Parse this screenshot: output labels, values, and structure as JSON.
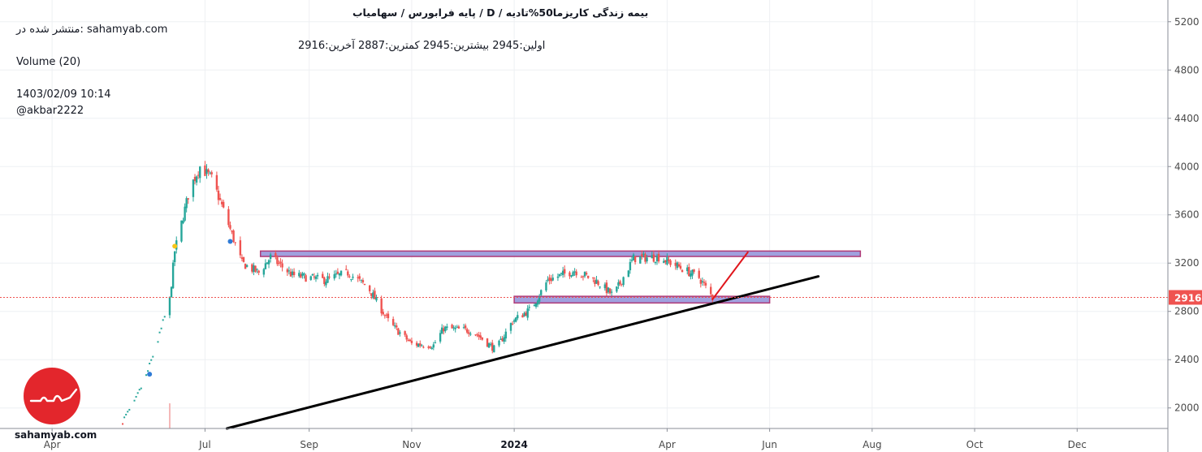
{
  "header": {
    "title": "بیمه زندگی کاریزما50%تادیه /  D  /  پایه فرابورس / سهامیاب",
    "published": "منتشر شده در: sahamyab.com",
    "ohlc": "اولین:2945  بیشترین:2945  کمترین:2887  آخرین:2916",
    "volume": "Volume (20)",
    "datetime": "1403/02/09 10:14",
    "author": "@akbar2222"
  },
  "logo": {
    "site": "sahamyab.com",
    "brand_color": "#e3262c"
  },
  "chart_data": {
    "type": "candlestick",
    "interval": "D",
    "y_axis": {
      "ticks": [
        2000,
        2400,
        2800,
        3200,
        3600,
        4000,
        4400,
        4800,
        5200
      ],
      "ylim": [
        1830,
        5380
      ]
    },
    "x_axis": {
      "ticks": [
        {
          "label": "Apr",
          "date": "2023-04-01"
        },
        {
          "label": "Jul",
          "date": "2023-07-01"
        },
        {
          "label": "Sep",
          "date": "2023-09-01"
        },
        {
          "label": "Nov",
          "date": "2023-11-01"
        },
        {
          "label": "2024",
          "date": "2024-01-01",
          "bold": true
        },
        {
          "label": "Apr",
          "date": "2024-04-01"
        },
        {
          "label": "Jun",
          "date": "2024-06-01"
        },
        {
          "label": "Aug",
          "date": "2024-08-01"
        },
        {
          "label": "Oct",
          "date": "2024-10-01"
        },
        {
          "label": "Dec",
          "date": "2024-12-01"
        }
      ],
      "xlim": [
        "2023-03-01",
        "2025-01-24"
      ]
    },
    "last_price": 2916,
    "last_price_color": "#ef5350",
    "colors": {
      "up": "#26a69a",
      "down": "#ef5350"
    },
    "close_path": [
      {
        "date": "2023-05-13",
        "close": 1890
      },
      {
        "date": "2023-05-20",
        "close": 2040
      },
      {
        "date": "2023-05-27",
        "close": 2260
      },
      {
        "date": "2023-06-04",
        "close": 2600
      },
      {
        "date": "2023-06-10",
        "close": 2900
      },
      {
        "date": "2023-06-13",
        "close": 3300
      },
      {
        "date": "2023-06-22",
        "close": 3820
      },
      {
        "date": "2023-06-28",
        "close": 4000
      },
      {
        "date": "2023-07-05",
        "close": 3900
      },
      {
        "date": "2023-07-13",
        "close": 3600
      },
      {
        "date": "2023-07-23",
        "close": 3200
      },
      {
        "date": "2023-08-02",
        "close": 3120
      },
      {
        "date": "2023-08-09",
        "close": 3250
      },
      {
        "date": "2023-08-22",
        "close": 3100
      },
      {
        "date": "2023-09-10",
        "close": 3060
      },
      {
        "date": "2023-09-24",
        "close": 3120
      },
      {
        "date": "2023-10-06",
        "close": 3000
      },
      {
        "date": "2023-10-19",
        "close": 2700
      },
      {
        "date": "2023-11-01",
        "close": 2530
      },
      {
        "date": "2023-11-14",
        "close": 2520
      },
      {
        "date": "2023-11-20",
        "close": 2660
      },
      {
        "date": "2023-12-07",
        "close": 2640
      },
      {
        "date": "2023-12-21",
        "close": 2480
      },
      {
        "date": "2023-12-31",
        "close": 2720
      },
      {
        "date": "2024-01-11",
        "close": 2820
      },
      {
        "date": "2024-01-21",
        "close": 3060
      },
      {
        "date": "2024-02-06",
        "close": 3140
      },
      {
        "date": "2024-02-19",
        "close": 3050
      },
      {
        "date": "2024-02-29",
        "close": 2930
      },
      {
        "date": "2024-03-12",
        "close": 3240
      },
      {
        "date": "2024-03-27",
        "close": 3250
      },
      {
        "date": "2024-04-08",
        "close": 3170
      },
      {
        "date": "2024-04-20",
        "close": 3080
      },
      {
        "date": "2024-04-28",
        "close": 2916
      }
    ],
    "drawings": {
      "upper_zone": {
        "from": "2023-08-03",
        "to": "2024-07-25",
        "low": 3255,
        "high": 3300,
        "fill": "#8f8fd8",
        "border": "#b03a78"
      },
      "lower_zone": {
        "from": "2024-01-01",
        "to": "2024-06-01",
        "low": 2870,
        "high": 2925,
        "fill": "#8f8fd8",
        "border": "#b03a78"
      },
      "trendline": {
        "from": {
          "date": "2023-07-14",
          "price": 1830
        },
        "to": {
          "date": "2024-06-30",
          "price": 3090
        },
        "color": "#000000"
      },
      "projection": {
        "from": {
          "date": "2024-04-28",
          "price": 2900
        },
        "to": {
          "date": "2024-05-19",
          "price": 3290
        },
        "color": "#e0161c"
      }
    },
    "volume_spike": {
      "date": "2023-06-10",
      "label": "Volume (20)"
    }
  }
}
